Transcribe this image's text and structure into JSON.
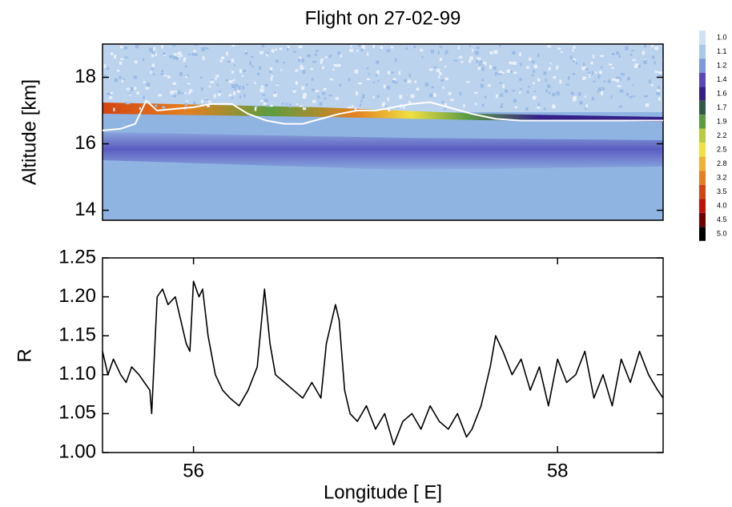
{
  "chart_data": [
    {
      "type": "heatmap",
      "title": "Flight on 27-02-99",
      "ylabel": "Altitude [km]",
      "xlim": [
        55.5,
        58.58
      ],
      "ylim": [
        13.7,
        19
      ],
      "yticks": [
        14,
        16,
        18
      ],
      "series": [
        {
          "color": "#ffffff",
          "x": [
            55.5,
            55.6,
            55.68,
            55.74,
            55.8,
            55.9,
            56.0,
            56.1,
            56.21,
            56.3,
            56.4,
            56.5,
            56.6,
            56.7,
            56.8,
            56.9,
            57.0,
            57.1,
            57.2,
            57.3,
            57.4,
            57.53,
            57.66,
            57.8,
            58.0,
            58.2,
            58.4,
            58.58
          ],
          "values": [
            16.4,
            16.45,
            16.6,
            17.3,
            17.0,
            17.05,
            17.1,
            17.2,
            17.2,
            16.9,
            16.7,
            16.6,
            16.6,
            16.75,
            16.9,
            17.0,
            17.0,
            17.1,
            17.2,
            17.25,
            17.1,
            16.9,
            16.75,
            16.7,
            16.7,
            16.7,
            16.7,
            16.7
          ]
        }
      ],
      "colorbar": {
        "ticks": [
          {
            "value": 1,
            "label": "1.0"
          },
          1.1,
          1.2,
          1.4,
          1.6,
          1.7,
          1.9,
          2.2,
          2.5,
          2.8,
          3.2,
          3.5,
          {
            "value": 4,
            "label": "4.0"
          },
          4.5,
          {
            "value": 5,
            "label": "5.0"
          }
        ],
        "colors": [
          "#d0e2f4",
          "#a8c8ec",
          "#7e98dc",
          "#5a48b8",
          "#342088",
          "#2f5a48",
          "#5c9c40",
          "#b8cc40",
          "#f0e040",
          "#f0b030",
          "#e48020",
          "#d44410",
          "#c01008",
          "#700000",
          "#000000"
        ]
      }
    },
    {
      "type": "line",
      "ylabel": "R",
      "xlabel": "Longitude [ E]",
      "xlim": [
        55.5,
        58.58
      ],
      "xticks": [
        56,
        58
      ],
      "ylim": [
        1.0,
        1.25
      ],
      "yticks": [
        {
          "value": 1.0,
          "label": "1.00"
        },
        1.05,
        {
          "value": 1.1,
          "label": "1.10"
        },
        1.15,
        {
          "value": 1.2,
          "label": "1.20"
        },
        1.25
      ],
      "series": [
        {
          "color": "#000000",
          "x": [
            55.5,
            55.53,
            55.56,
            55.6,
            55.63,
            55.66,
            55.7,
            55.73,
            55.76,
            55.77,
            55.8,
            55.83,
            55.86,
            55.9,
            55.93,
            55.96,
            55.98,
            56.0,
            56.03,
            56.05,
            56.08,
            56.12,
            56.16,
            56.2,
            56.25,
            56.3,
            56.35,
            56.39,
            56.42,
            56.45,
            56.5,
            56.55,
            56.6,
            56.65,
            56.7,
            56.73,
            56.78,
            56.8,
            56.83,
            56.86,
            56.9,
            56.95,
            57.0,
            57.05,
            57.1,
            57.15,
            57.2,
            57.25,
            57.3,
            57.35,
            57.4,
            57.45,
            57.5,
            57.53,
            57.58,
            57.63,
            57.66,
            57.7,
            57.75,
            57.8,
            57.85,
            57.9,
            57.95,
            58.0,
            58.05,
            58.1,
            58.15,
            58.2,
            58.25,
            58.3,
            58.35,
            58.4,
            58.45,
            58.5,
            58.55,
            58.58
          ],
          "values": [
            1.13,
            1.1,
            1.12,
            1.1,
            1.09,
            1.11,
            1.1,
            1.09,
            1.08,
            1.05,
            1.2,
            1.21,
            1.19,
            1.2,
            1.17,
            1.14,
            1.13,
            1.22,
            1.2,
            1.21,
            1.15,
            1.1,
            1.08,
            1.07,
            1.06,
            1.08,
            1.11,
            1.21,
            1.14,
            1.1,
            1.09,
            1.08,
            1.07,
            1.09,
            1.07,
            1.14,
            1.19,
            1.17,
            1.08,
            1.05,
            1.04,
            1.06,
            1.03,
            1.05,
            1.01,
            1.04,
            1.05,
            1.03,
            1.06,
            1.04,
            1.03,
            1.05,
            1.02,
            1.03,
            1.06,
            1.11,
            1.15,
            1.13,
            1.1,
            1.12,
            1.08,
            1.11,
            1.06,
            1.12,
            1.09,
            1.1,
            1.13,
            1.07,
            1.1,
            1.06,
            1.12,
            1.09,
            1.13,
            1.1,
            1.08,
            1.07
          ]
        }
      ]
    }
  ]
}
